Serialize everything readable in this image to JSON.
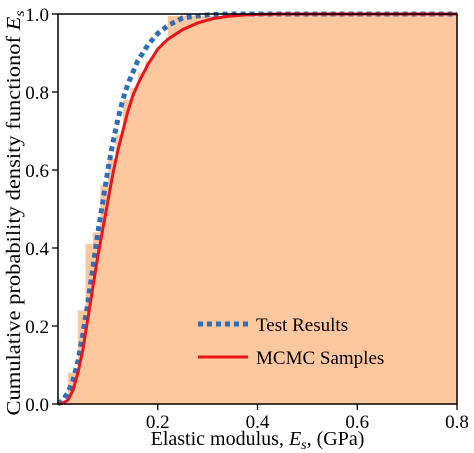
{
  "chart_data": {
    "type": "line",
    "xlabel": "Elastic modulus, ",
    "xlabel_var": "E",
    "xlabel_sub": "s",
    "xlabel_unit": ", (GPa)",
    "ylabel": "Cumulative probability density functionof ",
    "ylabel_var": "E",
    "ylabel_sub": "s",
    "xlim": [
      0,
      0.8
    ],
    "ylim": [
      0,
      1.0
    ],
    "x_ticks": [
      0.2,
      0.4,
      0.6,
      0.8
    ],
    "x_tick_labels": [
      "0.2",
      "0.4",
      "0.6",
      "0.8"
    ],
    "y_ticks": [
      0.0,
      0.2,
      0.4,
      0.6,
      0.8,
      1.0
    ],
    "y_tick_labels": [
      "0.0",
      "0.2",
      "0.4",
      "0.6",
      "0.8",
      "1.0"
    ],
    "grid": false,
    "legend_position": "lower-right",
    "series": [
      {
        "name": "Test Results",
        "style": "dotted",
        "color": "#2f6fb5",
        "x": [
          0.0,
          0.01,
          0.02,
          0.03,
          0.04,
          0.05,
          0.06,
          0.07,
          0.08,
          0.09,
          0.1,
          0.11,
          0.12,
          0.13,
          0.14,
          0.15,
          0.16,
          0.18,
          0.2,
          0.22,
          0.25,
          0.28,
          0.31,
          0.34,
          0.37,
          0.4,
          0.8
        ],
        "y": [
          0.0,
          0.01,
          0.03,
          0.06,
          0.11,
          0.18,
          0.26,
          0.35,
          0.44,
          0.52,
          0.6,
          0.67,
          0.73,
          0.78,
          0.82,
          0.85,
          0.88,
          0.92,
          0.95,
          0.97,
          0.99,
          0.995,
          0.999,
          1.0,
          1.0,
          1.0,
          1.0
        ]
      },
      {
        "name": "MCMC Samples",
        "style": "solid",
        "color": "#e8161b",
        "x": [
          0.0,
          0.01,
          0.02,
          0.03,
          0.04,
          0.05,
          0.06,
          0.07,
          0.08,
          0.09,
          0.1,
          0.11,
          0.12,
          0.13,
          0.14,
          0.15,
          0.16,
          0.18,
          0.2,
          0.22,
          0.25,
          0.28,
          0.31,
          0.34,
          0.37,
          0.4,
          0.45,
          0.5,
          0.8
        ],
        "y": [
          0.0,
          0.002,
          0.01,
          0.035,
          0.08,
          0.14,
          0.22,
          0.3,
          0.38,
          0.45,
          0.52,
          0.59,
          0.65,
          0.7,
          0.75,
          0.79,
          0.82,
          0.87,
          0.91,
          0.935,
          0.96,
          0.977,
          0.988,
          0.994,
          0.997,
          0.999,
          1.0,
          1.0,
          1.0
        ]
      }
    ],
    "histogram": {
      "color": "#fdc89f",
      "bin_edges": [
        0.0,
        0.02,
        0.04,
        0.055,
        0.07,
        0.085,
        0.1,
        0.115,
        0.13,
        0.145,
        0.16,
        0.175,
        0.19,
        0.205,
        0.22,
        0.8
      ],
      "values": [
        0.01,
        0.08,
        0.24,
        0.41,
        0.44,
        0.56,
        0.63,
        0.69,
        0.78,
        0.81,
        0.85,
        0.88,
        0.89,
        0.91,
        0.995
      ]
    }
  }
}
